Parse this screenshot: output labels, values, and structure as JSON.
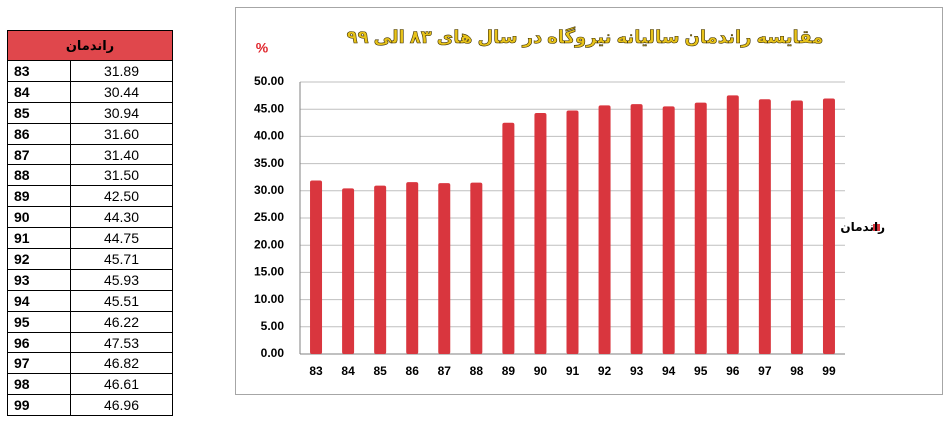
{
  "table": {
    "header": "راندمان",
    "rows": [
      [
        "83",
        "31.89"
      ],
      [
        "84",
        "30.44"
      ],
      [
        "85",
        "30.94"
      ],
      [
        "86",
        "31.60"
      ],
      [
        "87",
        "31.40"
      ],
      [
        "88",
        "31.50"
      ],
      [
        "89",
        "42.50"
      ],
      [
        "90",
        "44.30"
      ],
      [
        "91",
        "44.75"
      ],
      [
        "92",
        "45.71"
      ],
      [
        "93",
        "45.93"
      ],
      [
        "94",
        "45.51"
      ],
      [
        "95",
        "46.22"
      ],
      [
        "96",
        "47.53"
      ],
      [
        "97",
        "46.82"
      ],
      [
        "98",
        "46.61"
      ],
      [
        "99",
        "46.96"
      ]
    ]
  },
  "chart_data": {
    "type": "bar",
    "title": "مقایسه راندمان سالیانه نیروگاه در سال های ۸۳ الی ۹۹",
    "y_label": "%",
    "categories": [
      "83",
      "84",
      "85",
      "86",
      "87",
      "88",
      "89",
      "90",
      "91",
      "92",
      "93",
      "94",
      "95",
      "96",
      "97",
      "98",
      "99"
    ],
    "series": [
      {
        "name": "راندمان",
        "color": "#d9363e",
        "values": [
          31.89,
          30.44,
          30.94,
          31.6,
          31.4,
          31.5,
          42.5,
          44.3,
          44.75,
          45.71,
          45.93,
          45.51,
          46.22,
          47.53,
          46.82,
          46.61,
          46.96
        ]
      }
    ],
    "ylim": [
      0,
      50
    ],
    "yticks": [
      {
        "value": 0,
        "label": "0.00"
      },
      {
        "value": 5,
        "label": "5.00"
      },
      {
        "value": 10,
        "label": "10.00"
      },
      {
        "value": 15,
        "label": "15.00"
      },
      {
        "value": 20,
        "label": "20.00"
      },
      {
        "value": 25,
        "label": "25.00"
      },
      {
        "value": 30,
        "label": "30.00"
      },
      {
        "value": 35,
        "label": "35.00"
      },
      {
        "value": 40,
        "label": "40.00"
      },
      {
        "value": 45,
        "label": "45.00"
      },
      {
        "value": 50,
        "label": "50.00"
      }
    ],
    "grid": true,
    "legend": "right"
  }
}
